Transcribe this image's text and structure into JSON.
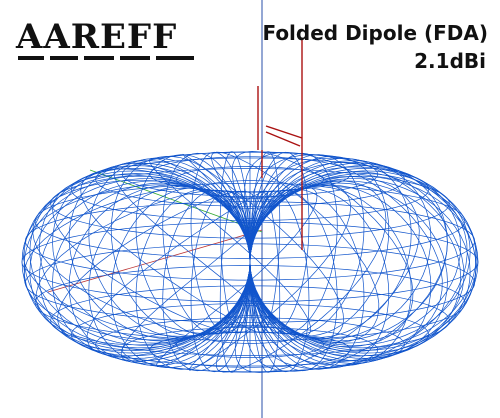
{
  "logo": {
    "text": "AAREFF",
    "color": "#111111"
  },
  "annotation": {
    "title": "Folded Dipole (FDA)",
    "gain": "2.1dBi"
  },
  "pattern": {
    "mesh_color": "#1155cc",
    "axis_color": "#2a4fa8",
    "antenna_color": "#aa1111",
    "x_axis_color": "#bb3333",
    "y_axis_color": "#33aa33"
  }
}
